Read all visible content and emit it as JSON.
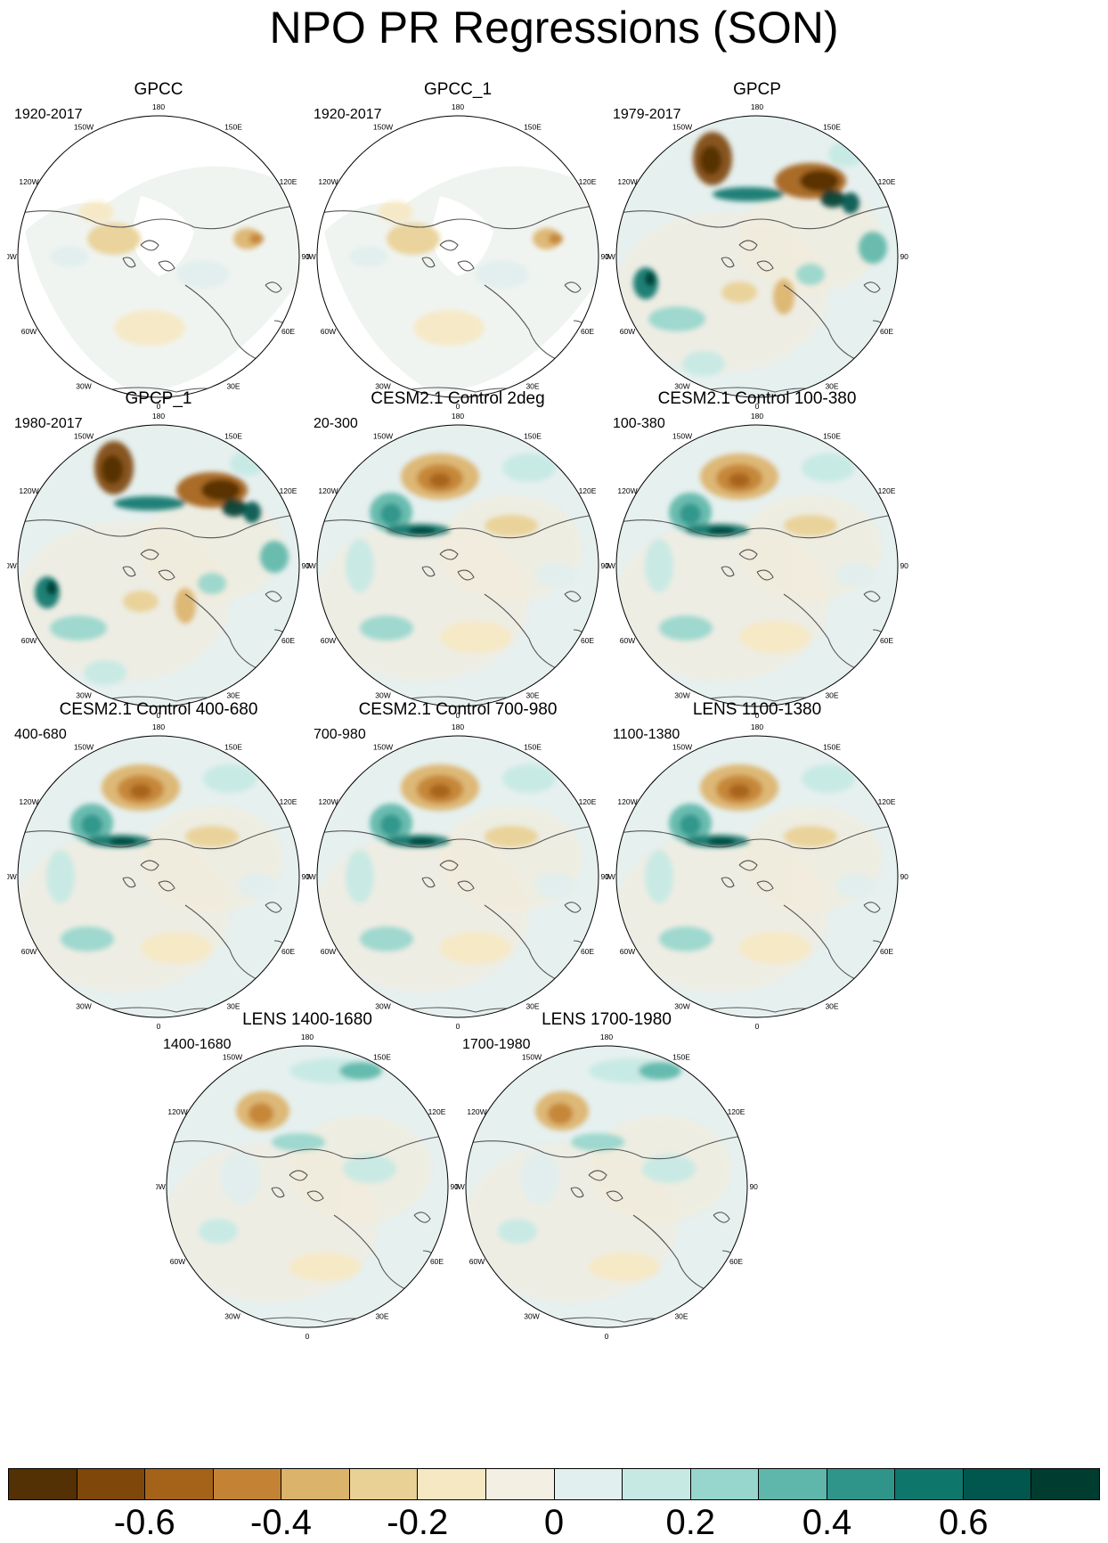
{
  "title": "NPO PR Regressions (SON)",
  "map_labels": [
    "180",
    "150E",
    "120E",
    "90E",
    "60E",
    "30E",
    "0",
    "30W",
    "60W",
    "90W",
    "120W",
    "150W"
  ],
  "panels": [
    {
      "title": "GPCC",
      "period": "1920-2017",
      "coverage": "land-only",
      "pattern": "weak"
    },
    {
      "title": "GPCC_1",
      "period": "1920-2017",
      "coverage": "land-only",
      "pattern": "weak"
    },
    {
      "title": "GPCP",
      "period": "1979-2017",
      "coverage": "full",
      "pattern": "strong-obs"
    },
    {
      "title": "GPCP_1",
      "period": "1980-2017",
      "coverage": "full",
      "pattern": "strong-obs"
    },
    {
      "title": "CESM2.1 Control 2deg",
      "period": "20-300",
      "coverage": "full",
      "pattern": "model"
    },
    {
      "title": "CESM2.1 Control 100-380",
      "period": "100-380",
      "coverage": "full",
      "pattern": "model"
    },
    {
      "title": "CESM2.1 Control 400-680",
      "period": "400-680",
      "coverage": "full",
      "pattern": "model"
    },
    {
      "title": "CESM2.1 Control 700-980",
      "period": "700-980",
      "coverage": "full",
      "pattern": "model"
    },
    {
      "title": "LENS 1100-1380",
      "period": "1100-1380",
      "coverage": "full",
      "pattern": "model"
    },
    {
      "title": "LENS 1400-1680",
      "period": "1400-1680",
      "coverage": "full",
      "pattern": "lens"
    },
    {
      "title": "LENS 1700-1980",
      "period": "1700-1980",
      "coverage": "full",
      "pattern": "lens"
    }
  ],
  "colorbar": {
    "colors": [
      "#543005",
      "#7f4709",
      "#a56219",
      "#c48334",
      "#dcb36b",
      "#e9d095",
      "#f6e8c3",
      "#f3efe2",
      "#e1efee",
      "#c6e9e4",
      "#97d6cc",
      "#5eb7aa",
      "#2f958a",
      "#0f766c",
      "#01574e",
      "#003c30"
    ],
    "tick_labels": [
      "-0.6",
      "-0.4",
      "-0.2",
      "0",
      "0.2",
      "0.4",
      "0.6"
    ],
    "tick_values": [
      -0.6,
      -0.4,
      -0.2,
      0,
      0.2,
      0.4,
      0.6
    ],
    "range": [
      -0.8,
      0.8
    ]
  }
}
